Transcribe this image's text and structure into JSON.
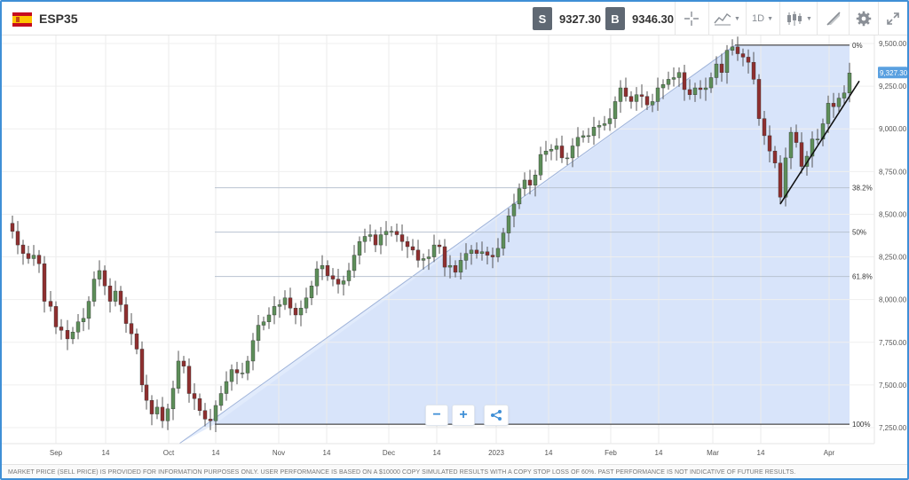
{
  "toolbar": {
    "symbol": "ESP35",
    "sell_tag": "S",
    "sell_price": "9327.30",
    "buy_tag": "B",
    "buy_price": "9346.30",
    "timeframe": "1D",
    "icons": [
      "crosshair-icon",
      "chart-type-icon",
      "candles-icon",
      "drawing-icon",
      "gear-icon",
      "expand-icon"
    ]
  },
  "chart": {
    "y_ticks": [
      "9,500.00",
      "9,250.00",
      "9,000.00",
      "8,750.00",
      "8,500.00",
      "8,250.00",
      "8,000.00",
      "7,750.00",
      "7,500.00",
      "7,250.00"
    ],
    "y_tick_values": [
      9500,
      9250,
      9000,
      8750,
      8500,
      8250,
      8000,
      7750,
      7500,
      7250
    ],
    "x_labels": [
      "Sep",
      "14",
      "Oct",
      "14",
      "Nov",
      "14",
      "Dec",
      "14",
      "2023",
      "14",
      "Feb",
      "14",
      "Mar",
      "14",
      "Apr"
    ],
    "current_price": "9,327.30",
    "fib_levels": [
      {
        "label": "0%",
        "value": 9490
      },
      {
        "label": "38.2%",
        "value": 8655
      },
      {
        "label": "50%",
        "value": 8395
      },
      {
        "label": "61.8%",
        "value": 8135
      },
      {
        "label": "100%",
        "value": 7270
      }
    ],
    "colors": {
      "up": "#5d8e59",
      "down": "#8f2f2f",
      "fib_fill": "#dce8fb",
      "axis_text": "#555555"
    }
  },
  "zoom": {
    "minus": "−",
    "plus": "+"
  },
  "footer": {
    "disclaimer": "MARKET PRICE (SELL PRICE) IS PROVIDED FOR INFORMATION PURPOSES ONLY. USER PERFORMANCE IS BASED ON A $10000 COPY SIMULATED RESULTS WITH A COPY STOP LOSS OF 60%. PAST PERFORMANCE IS NOT INDICATIVE OF FUTURE RESULTS."
  }
}
